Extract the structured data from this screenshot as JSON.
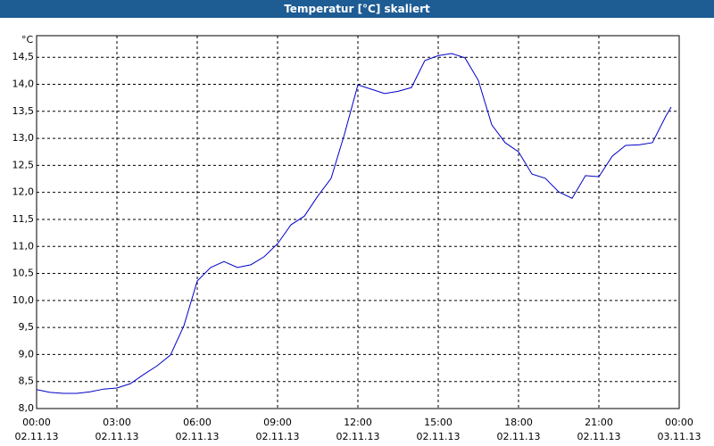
{
  "chart_data": {
    "type": "line",
    "title": "Temperatur [°C] skaliert",
    "y_label": "°C",
    "x": [
      0,
      0.5,
      1,
      1.5,
      2,
      2.5,
      3,
      3.5,
      4,
      4.5,
      5,
      5.5,
      6,
      6.5,
      7,
      7.5,
      8,
      8.5,
      9,
      9.5,
      10,
      10.5,
      11,
      11.5,
      12,
      12.5,
      13,
      13.5,
      14,
      14.5,
      15,
      15.5,
      16,
      16.5,
      17,
      17.5,
      18,
      18.5,
      19,
      19.5,
      20,
      20.5,
      21,
      21.5,
      22,
      22.5,
      23,
      23.5,
      23.7
    ],
    "series": [
      {
        "name": "Temperatur",
        "color": "#0000c8",
        "values": [
          8.35,
          8.3,
          8.28,
          8.28,
          8.31,
          8.36,
          8.38,
          8.46,
          8.63,
          8.79,
          8.99,
          9.53,
          10.36,
          10.61,
          10.72,
          10.61,
          10.66,
          10.81,
          11.05,
          11.4,
          11.56,
          11.93,
          12.26,
          13.08,
          13.99,
          13.91,
          13.83,
          13.87,
          13.94,
          14.44,
          14.53,
          14.57,
          14.49,
          14.07,
          13.25,
          12.92,
          12.75,
          12.34,
          12.26,
          12.01,
          11.89,
          12.31,
          12.29,
          12.67,
          12.87,
          12.88,
          12.92,
          13.41,
          13.58
        ]
      }
    ],
    "xlim": [
      0,
      24
    ],
    "ylim": [
      8.0,
      14.9
    ],
    "xticks": [
      {
        "value": 0,
        "label": "00:00",
        "date": "02.11.13"
      },
      {
        "value": 3,
        "label": "03:00",
        "date": "02.11.13"
      },
      {
        "value": 6,
        "label": "06:00",
        "date": "02.11.13"
      },
      {
        "value": 9,
        "label": "09:00",
        "date": "02.11.13"
      },
      {
        "value": 12,
        "label": "12:00",
        "date": "02.11.13"
      },
      {
        "value": 15,
        "label": "15:00",
        "date": "02.11.13"
      },
      {
        "value": 18,
        "label": "18:00",
        "date": "02.11.13"
      },
      {
        "value": 21,
        "label": "21:00",
        "date": "02.11.13"
      },
      {
        "value": 24,
        "label": "00:00",
        "date": "03.11.13"
      }
    ],
    "yticks": [
      {
        "value": 8.0,
        "label": "8,0"
      },
      {
        "value": 8.5,
        "label": "8,5"
      },
      {
        "value": 9.0,
        "label": "9,0"
      },
      {
        "value": 9.5,
        "label": "9,5"
      },
      {
        "value": 10.0,
        "label": "10,0"
      },
      {
        "value": 10.5,
        "label": "10,5"
      },
      {
        "value": 11.0,
        "label": "11,0"
      },
      {
        "value": 11.5,
        "label": "11,5"
      },
      {
        "value": 12.0,
        "label": "12,0"
      },
      {
        "value": 12.5,
        "label": "12,5"
      },
      {
        "value": 13.0,
        "label": "13,0"
      },
      {
        "value": 13.5,
        "label": "13,5"
      },
      {
        "value": 14.0,
        "label": "14,0"
      },
      {
        "value": 14.5,
        "label": "14,5"
      }
    ],
    "grid": true
  }
}
